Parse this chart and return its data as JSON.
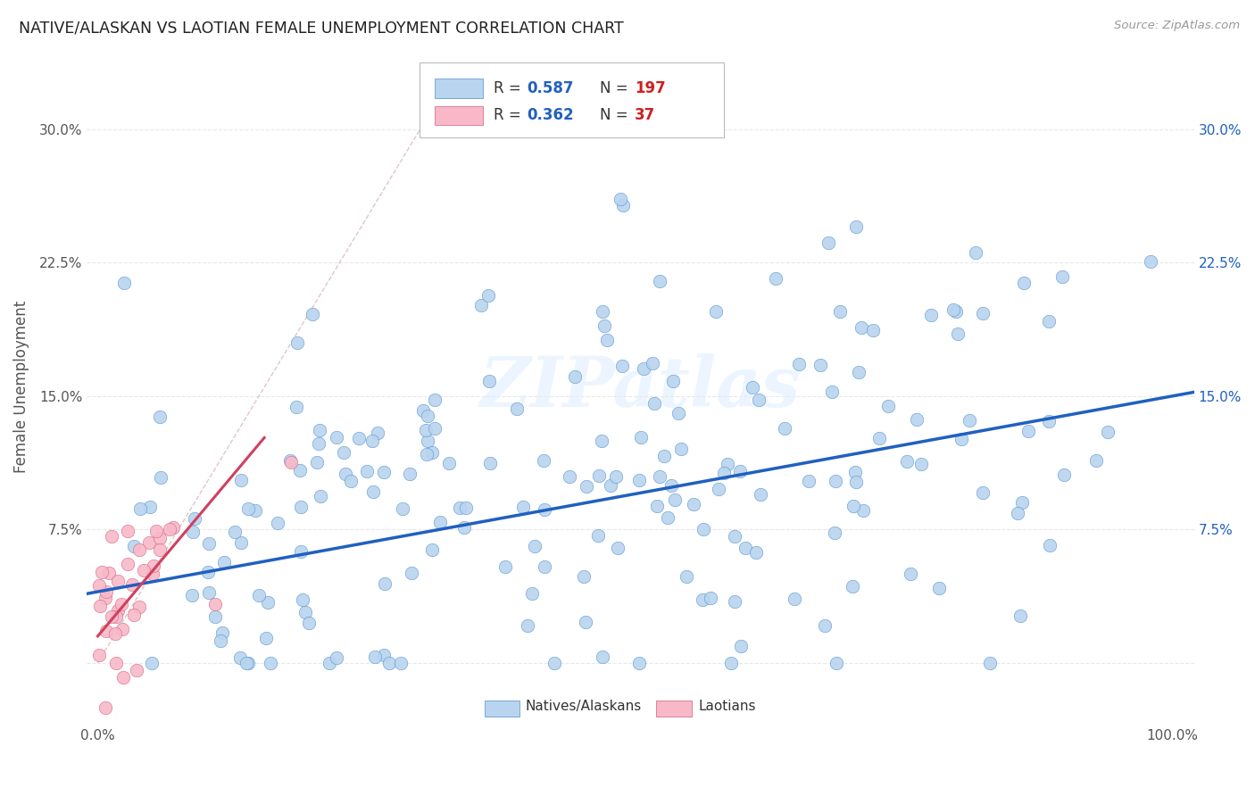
{
  "title": "NATIVE/ALASKAN VS LAOTIAN FEMALE UNEMPLOYMENT CORRELATION CHART",
  "source": "Source: ZipAtlas.com",
  "ylabel_label": "Female Unemployment",
  "blue_R": 0.587,
  "blue_N": 197,
  "pink_R": 0.362,
  "pink_N": 37,
  "blue_color": "#b8d4ee",
  "blue_edge_color": "#5090d0",
  "blue_line_color": "#2060c0",
  "pink_color": "#f8b8c8",
  "pink_edge_color": "#d06080",
  "pink_line_color": "#d04060",
  "diag_line_color": "#d8b8b8",
  "legend_blue_label": "Natives/Alaskans",
  "legend_pink_label": "Laotians",
  "watermark": "ZIPatlas",
  "background_color": "#ffffff",
  "grid_color": "#e8e8e8",
  "title_color": "#222222",
  "r_value_color": "#2060c0",
  "n_value_color": "#cc2020",
  "seed": 12,
  "xlim": [
    -0.01,
    1.02
  ],
  "ylim": [
    -0.035,
    0.345
  ]
}
